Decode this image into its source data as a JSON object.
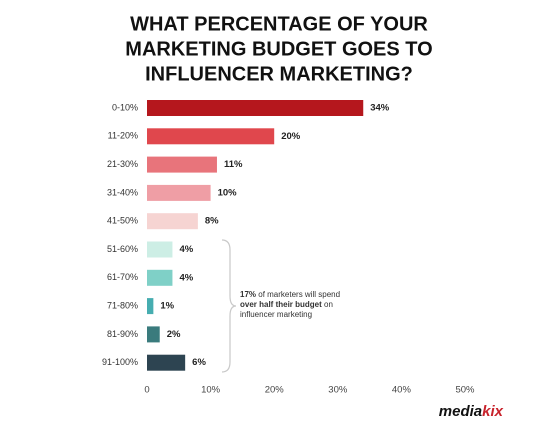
{
  "chart_data": {
    "type": "bar",
    "orientation": "horizontal",
    "title": [
      "WHAT PERCENTAGE OF YOUR",
      "MARKETING BUDGET GOES TO",
      "INFLUENCER MARKETING?"
    ],
    "categories": [
      "0-10%",
      "11-20%",
      "21-30%",
      "31-40%",
      "41-50%",
      "51-60%",
      "61-70%",
      "71-80%",
      "81-90%",
      "91-100%"
    ],
    "values": [
      34,
      20,
      11,
      10,
      8,
      4,
      4,
      1,
      2,
      6
    ],
    "value_labels": [
      "34%",
      "20%",
      "11%",
      "10%",
      "8%",
      "4%",
      "4%",
      "1%",
      "2%",
      "6%"
    ],
    "colors": [
      "#b5171d",
      "#e0474d",
      "#e8747b",
      "#ef9ea5",
      "#f6d4d2",
      "#cdeee5",
      "#7fd0c7",
      "#46adb0",
      "#3a7b7d",
      "#2d4451"
    ],
    "xlim": [
      0,
      50
    ],
    "xticks": [
      0,
      {
        "value": 10,
        "label": "10%"
      },
      {
        "value": 20,
        "label": "20%"
      },
      {
        "value": 30,
        "label": "30%"
      },
      {
        "value": 40,
        "label": "40%"
      },
      {
        "value": 50,
        "label": "50%"
      }
    ],
    "grid": false,
    "annotation": [
      [
        {
          "text": "17%",
          "bold": true
        },
        {
          "text": " of marketers will spend",
          "bold": false
        }
      ],
      [
        {
          "text": "over half their budget",
          "bold": true
        },
        {
          "text": " on",
          "bold": false
        }
      ],
      [
        {
          "text": "influencer marketing",
          "bold": false
        }
      ]
    ],
    "logo": [
      {
        "text": "media",
        "color": "#111111"
      },
      {
        "text": "kix",
        "color": "#c8232c"
      }
    ]
  }
}
